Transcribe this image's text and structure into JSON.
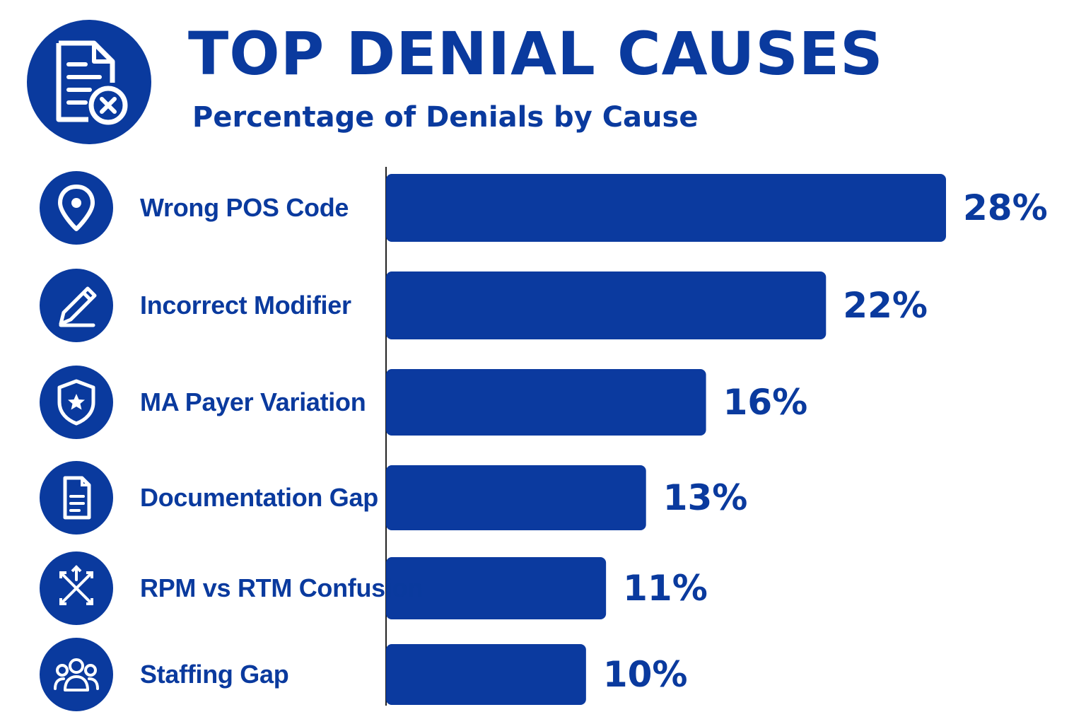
{
  "header": {
    "title": "TOP DENIAL CAUSES",
    "subtitle": "Percentage of Denials by Cause",
    "icon": "document-reject-icon"
  },
  "colors": {
    "primary": "#0a3a9e",
    "bar": "#0b3a9f",
    "background": "#ffffff"
  },
  "chart_data": {
    "type": "bar",
    "orientation": "horizontal",
    "title": "TOP DENIAL CAUSES",
    "subtitle": "Percentage of Denials by Cause",
    "categories": [
      "Wrong POS Code",
      "Incorrect Modifier",
      "MA Payer Variation",
      "Documentation Gap",
      "RPM vs RTM Confusion",
      "Staffing Gap"
    ],
    "values": [
      28,
      22,
      16,
      13,
      11,
      10
    ],
    "value_labels": [
      "28%",
      "22%",
      "16%",
      "13%",
      "11%",
      "10%"
    ],
    "icons": [
      "map-pin-icon",
      "pencil-icon",
      "shield-star-icon",
      "document-icon",
      "arrows-exchange-icon",
      "people-group-icon"
    ],
    "unit": "%",
    "xlim": [
      0,
      28
    ],
    "grid": false,
    "legend": "none"
  }
}
